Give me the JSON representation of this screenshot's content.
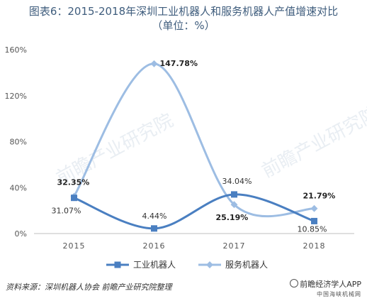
{
  "title": {
    "line1": "图表6：2015-2018年深圳工业机器人和服务机器人产值增速对比",
    "line2": "（单位：%）"
  },
  "chart_data": {
    "type": "line",
    "categories": [
      "2015",
      "2016",
      "2017",
      "2018"
    ],
    "ylim": [
      0,
      160
    ],
    "yticks": [
      "0%",
      "40%",
      "80%",
      "120%",
      "160%"
    ],
    "ytick_values": [
      0,
      40,
      80,
      120,
      160
    ],
    "series": [
      {
        "name": "工业机器人",
        "values": [
          31.07,
          4.44,
          34.04,
          10.85
        ],
        "labels": [
          "31.07%",
          "4.44%",
          "34.04%",
          "10.85%"
        ],
        "color": "#4a7fc1"
      },
      {
        "name": "服务机器人",
        "values": [
          32.35,
          147.78,
          25.19,
          21.79
        ],
        "labels": [
          "32.35%",
          "147.78%",
          "25.19%",
          "21.79%"
        ],
        "color": "#9dbde3"
      }
    ],
    "legend": "bottom",
    "grid": false
  },
  "footer": {
    "source": "资料来源：深圳机器人协会  前瞻产业研究院整理",
    "brand": "前瞻经济学人APP",
    "brand_sub": "中国海峡机械网"
  },
  "watermark": "前瞻产业研究院"
}
